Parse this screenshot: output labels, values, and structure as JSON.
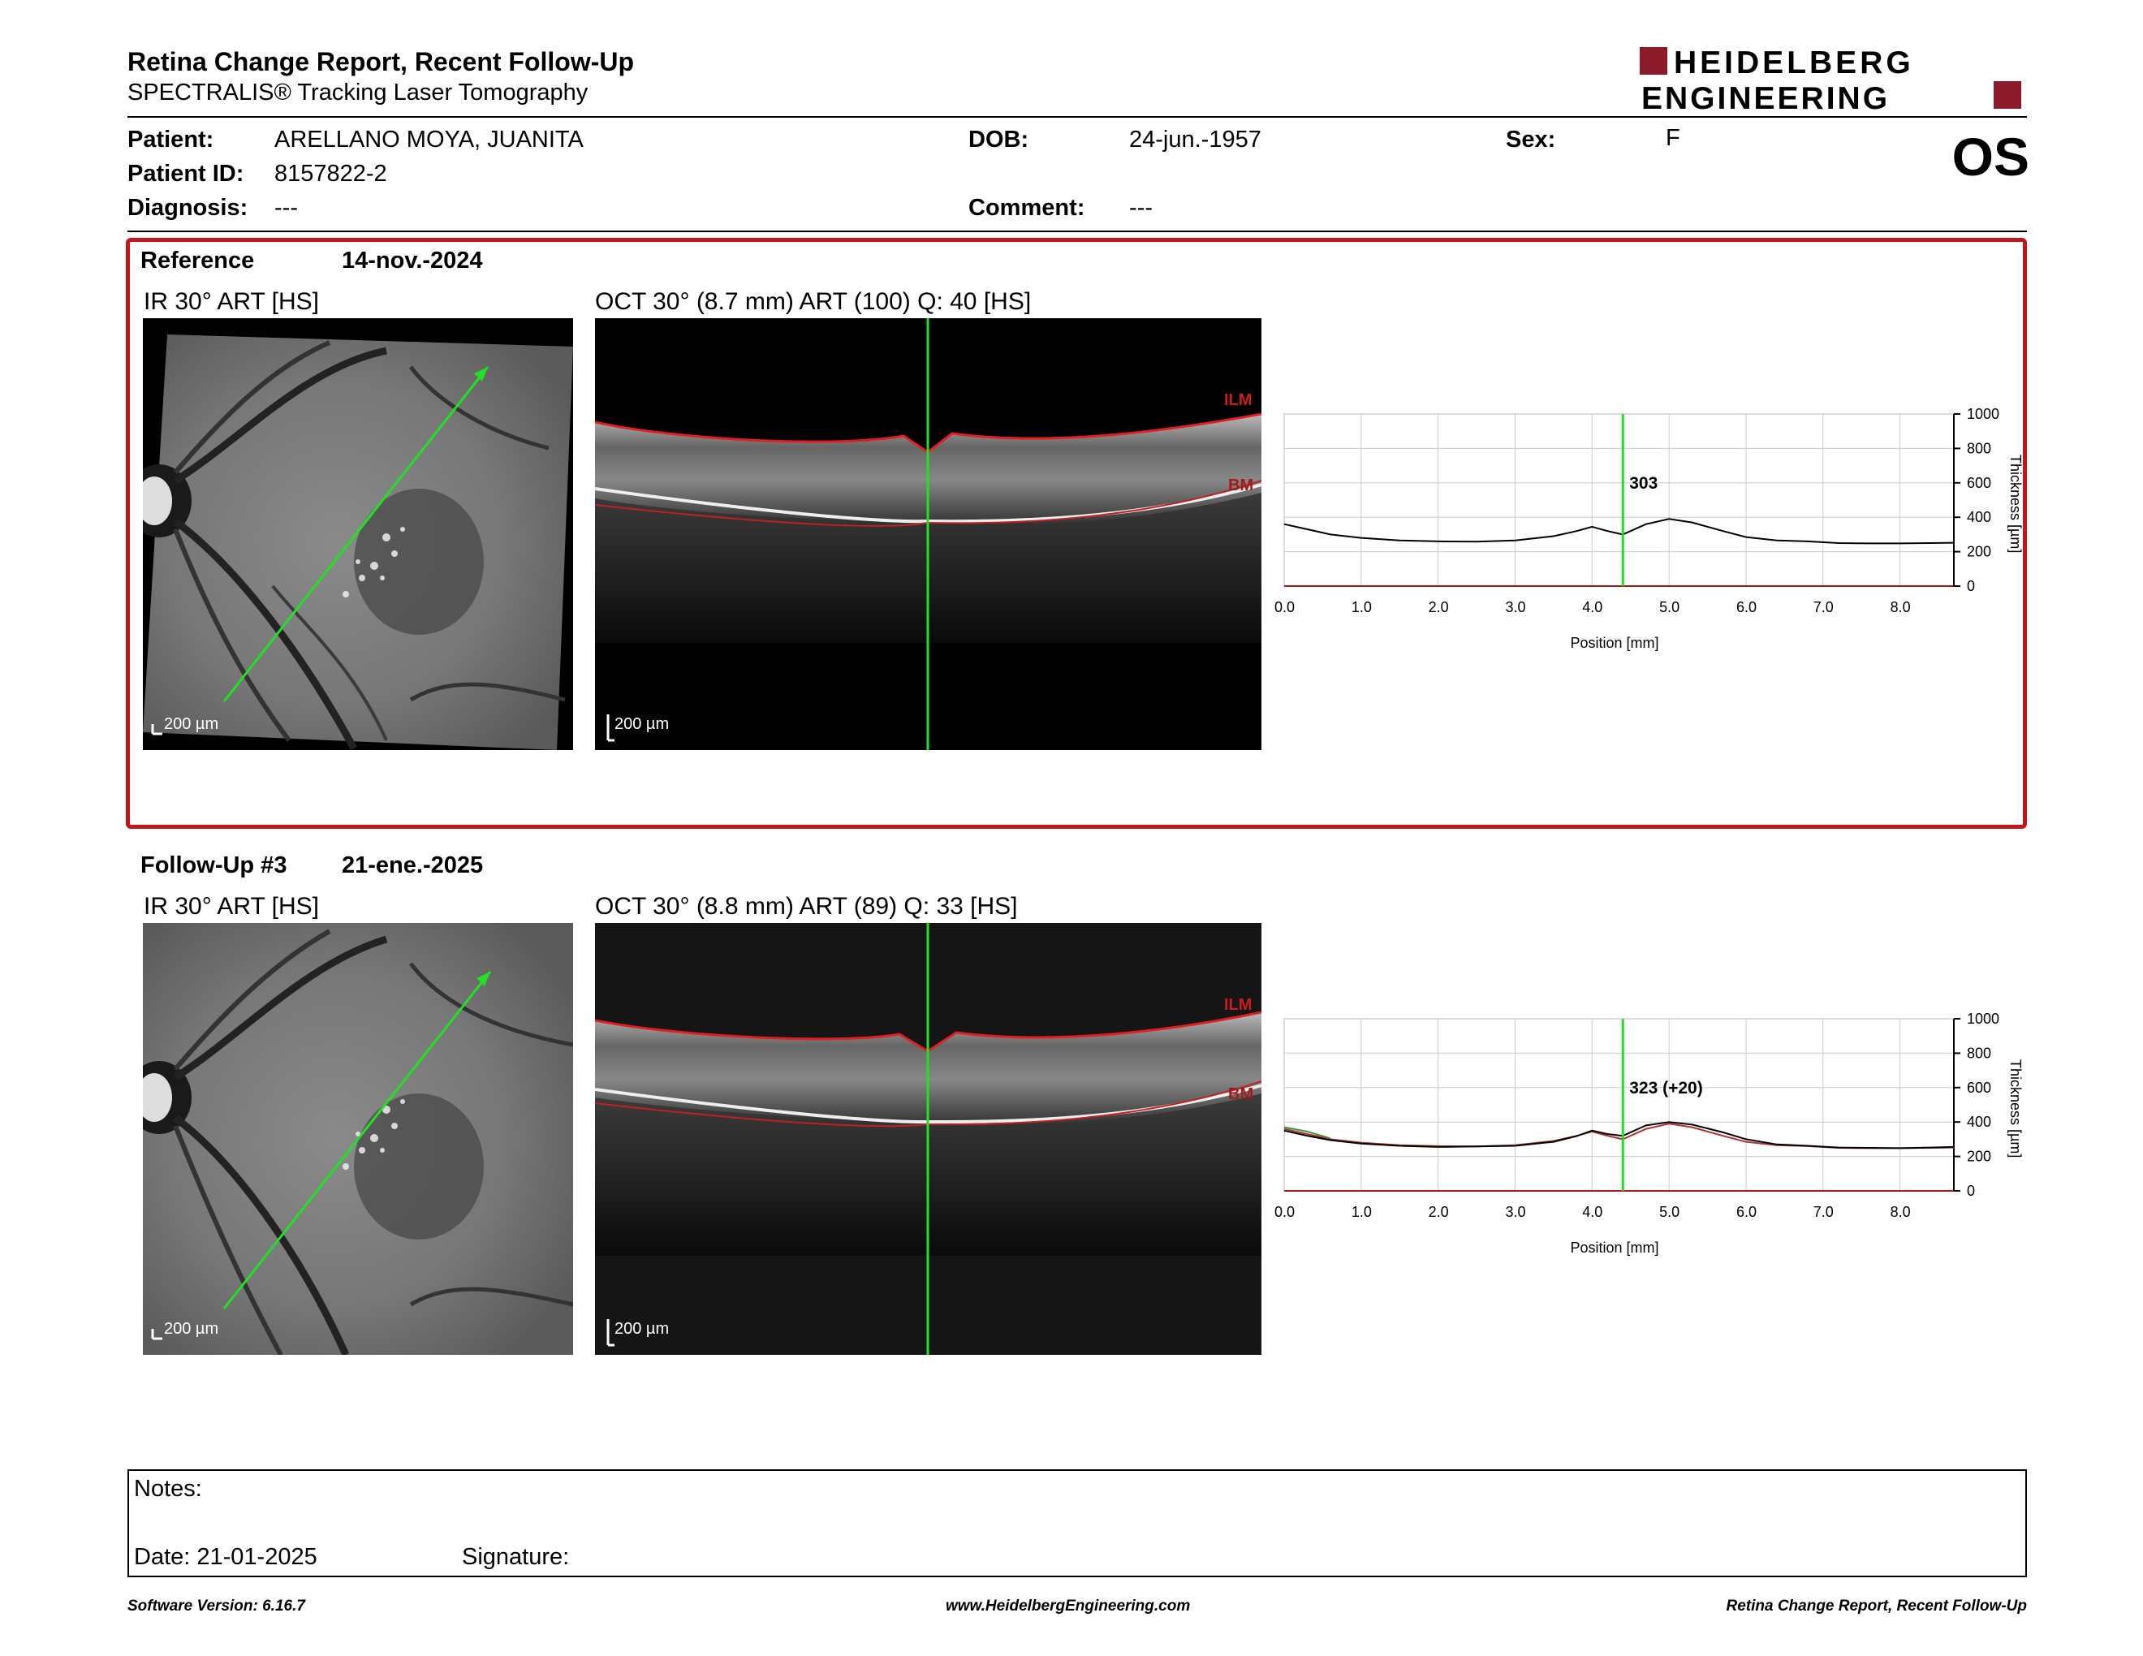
{
  "header": {
    "title": "Retina Change Report, Recent Follow-Up",
    "subtitle": "SPECTRALIS® Tracking Laser Tomography",
    "logo_line1": "HEIDELBERG",
    "logo_line2": "ENGINEERING",
    "eye": "OS"
  },
  "patient": {
    "patient_label": "Patient:",
    "patient_value": "ARELLANO MOYA, JUANITA",
    "id_label": "Patient ID:",
    "id_value": "8157822-2",
    "diagnosis_label": "Diagnosis:",
    "diagnosis_value": "---",
    "dob_label": "DOB:",
    "dob_value": "24-jun.-1957",
    "comment_label": "Comment:",
    "comment_value": "---",
    "sex_label": "Sex:",
    "sex_value": "F"
  },
  "reference": {
    "label": "Reference",
    "date": "14-nov.-2024",
    "ir_label": "IR 30° ART [HS]",
    "oct_label": "OCT 30° (8.7 mm) ART (100) Q: 40 [HS]",
    "scale": "200 µm",
    "ilm": "ILM",
    "bm": "BM",
    "marker_value": "303"
  },
  "followup": {
    "label": "Follow-Up #3",
    "date": "21-ene.-2025",
    "ir_label": "IR 30° ART [HS]",
    "oct_label": "OCT 30° (8.8 mm) ART (89) Q: 33 [HS]",
    "scale": "200 µm",
    "ilm": "ILM",
    "bm": "BM",
    "marker_value": "323 (+20)"
  },
  "chart_axes": {
    "xlabel": "Position [mm]",
    "ylabel": "Thickness [µm]",
    "x_ticks": [
      "0.0",
      "1.0",
      "2.0",
      "3.0",
      "4.0",
      "5.0",
      "6.0",
      "7.0",
      "8.0"
    ],
    "y_ticks": [
      "1000",
      "800",
      "600",
      "400",
      "200",
      "0"
    ]
  },
  "chart_data": [
    {
      "type": "line",
      "xlabel": "Position [mm]",
      "ylabel": "Thickness [µm]",
      "xlim": [
        0,
        8.7
      ],
      "ylim": [
        0,
        1000
      ],
      "grid": true,
      "marker_x": 4.4,
      "marker_label": "303",
      "series": [
        {
          "color": "#000000",
          "x": [
            0,
            0.3,
            0.6,
            1.0,
            1.5,
            2.0,
            2.5,
            3.0,
            3.5,
            3.8,
            4.0,
            4.2,
            4.4,
            4.7,
            5.0,
            5.3,
            5.7,
            6.0,
            6.4,
            6.8,
            7.2,
            7.6,
            8.0,
            8.4,
            8.7
          ],
          "y": [
            360,
            330,
            300,
            280,
            265,
            260,
            258,
            265,
            290,
            320,
            345,
            320,
            300,
            360,
            390,
            370,
            320,
            285,
            265,
            260,
            250,
            248,
            248,
            250,
            252
          ]
        }
      ]
    },
    {
      "type": "line",
      "xlabel": "Position [mm]",
      "ylabel": "Thickness [µm]",
      "xlim": [
        0,
        8.7
      ],
      "ylim": [
        0,
        1000
      ],
      "grid": true,
      "marker_x": 4.4,
      "marker_label": "323 (+20)",
      "series": [
        {
          "color": "#000000",
          "x": [
            0,
            0.3,
            0.6,
            1.0,
            1.5,
            2.0,
            2.5,
            3.0,
            3.5,
            3.8,
            4.0,
            4.2,
            4.4,
            4.7,
            5.0,
            5.3,
            5.7,
            6.0,
            6.4,
            6.8,
            7.2,
            7.6,
            8.0,
            8.4,
            8.7
          ],
          "y": [
            350,
            320,
            295,
            275,
            262,
            255,
            258,
            262,
            285,
            318,
            350,
            330,
            320,
            380,
            400,
            385,
            340,
            300,
            270,
            262,
            252,
            250,
            248,
            252,
            255
          ]
        },
        {
          "color": "#b03030",
          "x": [
            0,
            0.3,
            0.6,
            1.0,
            1.5,
            2.0,
            2.5,
            3.0,
            3.5,
            3.8,
            4.0,
            4.2,
            4.4,
            4.7,
            5.0,
            5.3,
            5.7,
            6.0,
            6.4,
            6.8,
            7.2,
            7.6,
            8.0,
            8.4,
            8.7
          ],
          "y": [
            360,
            330,
            300,
            280,
            265,
            260,
            258,
            265,
            290,
            320,
            345,
            320,
            300,
            360,
            390,
            370,
            320,
            285,
            265,
            260,
            250,
            248,
            248,
            250,
            252
          ]
        },
        {
          "color": "#3a9a3a",
          "x": [
            0,
            0.3,
            0.6
          ],
          "y": [
            370,
            345,
            305
          ]
        }
      ]
    }
  ],
  "notes": {
    "notes_label": "Notes:",
    "date_label": "Date: 21-01-2025",
    "signature_label": "Signature:"
  },
  "footer": {
    "software": "Software Version: 6.16.7",
    "url": "www.HeidelbergEngineering.com",
    "report": "Retina Change Report, Recent Follow-Up"
  }
}
